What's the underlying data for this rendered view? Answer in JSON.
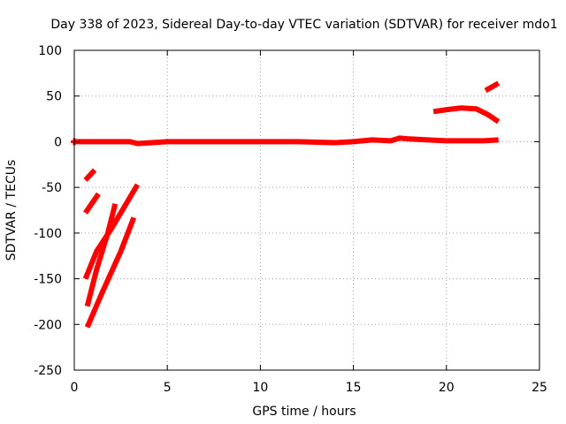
{
  "chart_data": {
    "type": "line",
    "title": "Day 338 of 2023, Sidereal Day-to-day VTEC variation (SDTVAR) for receiver mdo1",
    "xlabel": "GPS time / hours",
    "ylabel": "SDTVAR / TECUs",
    "xlim": [
      0,
      25
    ],
    "ylim": [
      -250,
      100
    ],
    "xticks": [
      "0",
      "5",
      "10",
      "15",
      "20",
      "25"
    ],
    "yticks": [
      "100",
      "50",
      "0",
      "-50",
      "-100",
      "-150",
      "-200",
      "-250"
    ],
    "grid": true,
    "color": "#ff0000",
    "series": [
      {
        "name": "baseline",
        "x": [
          0.0,
          1.0,
          3.0,
          3.4,
          5,
          8,
          10,
          12,
          14,
          15,
          16,
          17,
          17.5,
          18,
          19,
          20,
          21,
          22,
          22.8
        ],
        "y": [
          0,
          0,
          0,
          -2,
          0,
          0,
          0,
          0,
          -1,
          0,
          2,
          1,
          4,
          3,
          2,
          1,
          1,
          1,
          2
        ]
      },
      {
        "name": "arc-upper-short",
        "x": [
          0.6,
          1.1
        ],
        "y": [
          -42,
          -31
        ]
      },
      {
        "name": "arc-b",
        "x": [
          0.6,
          1.0,
          1.3
        ],
        "y": [
          -78,
          -66,
          -57
        ]
      },
      {
        "name": "arc-c",
        "x": [
          0.6,
          1.2,
          2.0,
          3.4
        ],
        "y": [
          -150,
          -120,
          -95,
          -47
        ]
      },
      {
        "name": "arc-d",
        "x": [
          0.7,
          1.2,
          1.8,
          2.2
        ],
        "y": [
          -180,
          -140,
          -100,
          -68
        ]
      },
      {
        "name": "arc-e",
        "x": [
          0.7,
          1.5,
          2.5,
          3.2
        ],
        "y": [
          -203,
          -165,
          -120,
          -83
        ]
      },
      {
        "name": "hump",
        "x": [
          19.3,
          20.0,
          20.8,
          21.6,
          22.2,
          22.8
        ],
        "y": [
          33,
          35,
          37,
          36,
          30,
          22
        ]
      },
      {
        "name": "rise",
        "x": [
          22.1,
          22.8
        ],
        "y": [
          56,
          64
        ]
      }
    ]
  }
}
